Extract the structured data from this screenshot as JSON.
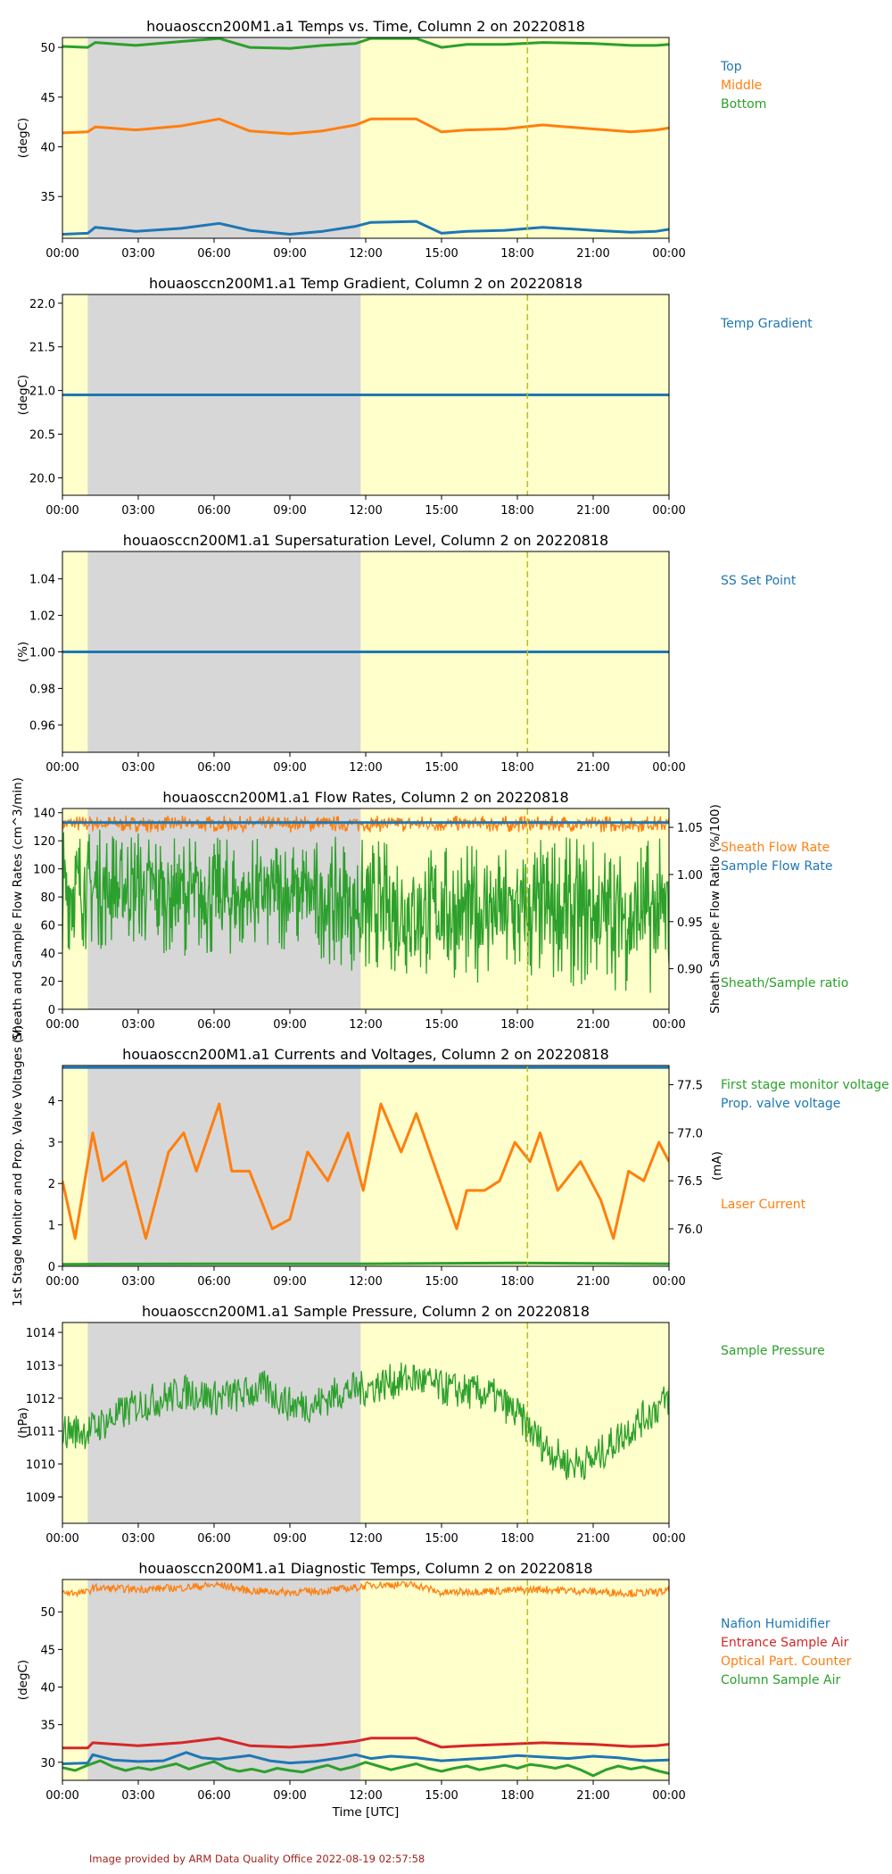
{
  "colors": {
    "blue": "#1f77b4",
    "orange": "#ff7f0e",
    "green": "#2ca02c",
    "red": "#d62728",
    "day_shade": "#ffffcc",
    "night_shade": "#d7d7d7",
    "marker_line": "#bcbd22",
    "credit": "#a0241c"
  },
  "credit": "Image provided by ARM Data Quality Office 2022-08-19 02:57:58",
  "chart_data": [
    {
      "type": "line",
      "title": "houaosccn200M1.a1 Temps vs. Time, Column 2 on 20220818",
      "xlabel": "",
      "ylabel": "(degC)",
      "x_ticks": [
        "00:00",
        "03:00",
        "06:00",
        "09:00",
        "12:00",
        "15:00",
        "18:00",
        "21:00",
        "00:00"
      ],
      "y_ticks": [
        "35",
        "40",
        "45",
        "50"
      ],
      "ylim": [
        30.8,
        51.0
      ],
      "night_shading_hours": [
        1.0,
        11.8
      ],
      "marker_hour": 18.4,
      "legend_entries": [
        {
          "label": "Top",
          "color": "#1f77b4"
        },
        {
          "label": "Middle",
          "color": "#ff7f0e"
        },
        {
          "label": "Bottom",
          "color": "#2ca02c"
        }
      ],
      "series": [
        {
          "name": "Top",
          "color": "#1f77b4",
          "x": [
            0,
            1,
            1.3,
            2.9,
            4.7,
            6.2,
            7.4,
            9.0,
            10.3,
            11.6,
            12.2,
            14.0,
            15.0,
            16.0,
            17.5,
            19.0,
            21.0,
            22.5,
            23.5,
            24
          ],
          "y": [
            31.2,
            31.3,
            31.9,
            31.5,
            31.8,
            32.3,
            31.6,
            31.2,
            31.5,
            32.0,
            32.4,
            32.5,
            31.3,
            31.5,
            31.6,
            31.9,
            31.6,
            31.4,
            31.5,
            31.7
          ]
        },
        {
          "name": "Middle",
          "color": "#ff7f0e",
          "x": [
            0,
            1,
            1.3,
            2.9,
            4.7,
            6.2,
            7.4,
            9.0,
            10.3,
            11.6,
            12.2,
            14.0,
            15.0,
            16.0,
            17.5,
            19.0,
            21.0,
            22.5,
            23.5,
            24
          ],
          "y": [
            41.4,
            41.5,
            42.0,
            41.7,
            42.1,
            42.8,
            41.6,
            41.3,
            41.6,
            42.2,
            42.8,
            42.8,
            41.5,
            41.7,
            41.8,
            42.2,
            41.8,
            41.5,
            41.7,
            41.9
          ]
        },
        {
          "name": "Bottom",
          "color": "#2ca02c",
          "x": [
            0,
            1,
            1.3,
            2.9,
            4.7,
            6.2,
            7.4,
            9.0,
            10.3,
            11.6,
            12.2,
            14.0,
            15.0,
            16.0,
            17.5,
            19.0,
            21.0,
            22.5,
            23.5,
            24
          ],
          "y": [
            50.1,
            50.0,
            50.5,
            50.2,
            50.6,
            50.9,
            50.0,
            49.9,
            50.2,
            50.4,
            50.9,
            50.9,
            50.0,
            50.3,
            50.3,
            50.5,
            50.4,
            50.2,
            50.2,
            50.3
          ]
        }
      ]
    },
    {
      "type": "line",
      "title": "houaosccn200M1.a1 Temp Gradient, Column 2 on 20220818",
      "xlabel": "",
      "ylabel": "(degC)",
      "x_ticks": [
        "00:00",
        "03:00",
        "06:00",
        "09:00",
        "12:00",
        "15:00",
        "18:00",
        "21:00",
        "00:00"
      ],
      "y_ticks": [
        "20.0",
        "20.5",
        "21.0",
        "21.5",
        "22.0"
      ],
      "ylim": [
        19.8,
        22.1
      ],
      "night_shading_hours": [
        1.0,
        11.8
      ],
      "marker_hour": 18.4,
      "legend_entries": [
        {
          "label": "Temp Gradient",
          "color": "#1f77b4"
        }
      ],
      "series": [
        {
          "name": "Temp Gradient",
          "color": "#1f77b4",
          "x": [
            0,
            24
          ],
          "y": [
            20.95,
            20.95
          ]
        }
      ]
    },
    {
      "type": "line",
      "title": "houaosccn200M1.a1 Supersaturation Level, Column 2 on 20220818",
      "xlabel": "",
      "ylabel": "(%)",
      "x_ticks": [
        "00:00",
        "03:00",
        "06:00",
        "09:00",
        "12:00",
        "15:00",
        "18:00",
        "21:00",
        "00:00"
      ],
      "y_ticks": [
        "0.96",
        "0.98",
        "1.00",
        "1.02",
        "1.04"
      ],
      "ylim": [
        0.945,
        1.055
      ],
      "night_shading_hours": [
        1.0,
        11.8
      ],
      "marker_hour": 18.4,
      "legend_entries": [
        {
          "label": "SS Set Point",
          "color": "#1f77b4"
        }
      ],
      "series": [
        {
          "name": "SS Set Point",
          "color": "#1f77b4",
          "x": [
            0,
            24
          ],
          "y": [
            1.0,
            1.0
          ]
        }
      ]
    },
    {
      "type": "line",
      "title": "houaosccn200M1.a1 Flow Rates, Column 2 on 20220818",
      "xlabel": "",
      "ylabel": "Sheath and Sample Flow Rates (cm^3/min)",
      "ylabel_right": "Sheath Sample Flow Ratio (%/100)",
      "x_ticks": [
        "00:00",
        "03:00",
        "06:00",
        "09:00",
        "12:00",
        "15:00",
        "18:00",
        "21:00",
        "00:00"
      ],
      "y_ticks": [
        "0",
        "20",
        "40",
        "60",
        "80",
        "100",
        "120",
        "140"
      ],
      "y_ticks_right": [
        "0.90",
        "0.95",
        "1.00",
        "1.05"
      ],
      "ylim": [
        0,
        143
      ],
      "ylim_right": [
        0.857,
        1.07
      ],
      "night_shading_hours": [
        1.0,
        11.8
      ],
      "marker_hour": 18.4,
      "legend_entries": [
        {
          "label": "Sheath Flow Rate",
          "color": "#ff7f0e"
        },
        {
          "label": "Sample Flow Rate",
          "color": "#1f77b4"
        },
        {
          "label": "Sheath/Sample ratio",
          "color": "#2ca02c"
        }
      ],
      "series": [
        {
          "name": "Sheath Flow Rate",
          "color": "#ff7f0e",
          "axis": "left",
          "x": [
            0,
            24
          ],
          "y_low": [
            126,
            126
          ],
          "y_high": [
            138,
            138
          ]
        },
        {
          "name": "Sample Flow Rate",
          "color": "#1f77b4",
          "axis": "left",
          "x": [
            0,
            24
          ],
          "y": [
            133,
            133
          ]
        },
        {
          "name": "Sheath/Sample ratio",
          "color": "#2ca02c",
          "axis": "right",
          "x": [
            0,
            3,
            6,
            9,
            12,
            15,
            18,
            21,
            24
          ],
          "y_low": [
            0.92,
            0.92,
            0.91,
            0.92,
            0.89,
            0.89,
            0.88,
            0.88,
            0.87
          ],
          "y_high": [
            1.05,
            1.05,
            1.04,
            1.04,
            1.04,
            1.03,
            1.04,
            1.04,
            1.04
          ]
        }
      ]
    },
    {
      "type": "line",
      "title": "houaosccn200M1.a1 Currents and Voltages, Column 2 on 20220818",
      "xlabel": "",
      "ylabel": "1st Stage Monitor and Prop. Valve Voltages (V)",
      "ylabel_right": "(mA)",
      "x_ticks": [
        "00:00",
        "03:00",
        "06:00",
        "09:00",
        "12:00",
        "15:00",
        "18:00",
        "21:00",
        "00:00"
      ],
      "y_ticks": [
        "0",
        "1",
        "2",
        "3",
        "4"
      ],
      "y_ticks_right": [
        "76.0",
        "76.5",
        "77.0",
        "77.5"
      ],
      "ylim": [
        0,
        4.85
      ],
      "ylim_right": [
        75.61,
        77.7
      ],
      "night_shading_hours": [
        1.0,
        11.8
      ],
      "marker_hour": 18.4,
      "legend_entries": [
        {
          "label": "First stage monitor voltage",
          "color": "#2ca02c"
        },
        {
          "label": "Prop. valve voltage",
          "color": "#1f77b4"
        },
        {
          "label": "Laser Current",
          "color": "#ff7f0e"
        }
      ],
      "series": [
        {
          "name": "First stage monitor voltage",
          "color": "#2ca02c",
          "axis": "left",
          "x": [
            0,
            6,
            12,
            18,
            24
          ],
          "y": [
            0.05,
            0.06,
            0.06,
            0.08,
            0.06
          ]
        },
        {
          "name": "Prop. valve voltage",
          "color": "#1f77b4",
          "axis": "left",
          "x": [
            0,
            24
          ],
          "y": [
            4.8,
            4.8
          ]
        },
        {
          "name": "Laser Current",
          "color": "#ff7f0e",
          "axis": "right",
          "x": [
            0,
            0.5,
            1.2,
            1.6,
            2.5,
            3.0,
            3.3,
            4.2,
            4.8,
            5.3,
            6.2,
            6.7,
            7.4,
            8.3,
            9.0,
            9.7,
            10.5,
            11.3,
            11.9,
            12.6,
            13.4,
            14.0,
            14.8,
            15.6,
            16.0,
            16.7,
            17.3,
            17.9,
            18.5,
            18.9,
            19.6,
            20.5,
            21.3,
            21.8,
            22.4,
            23.0,
            23.6,
            24
          ],
          "y": [
            76.5,
            75.9,
            77.0,
            76.5,
            76.7,
            76.2,
            75.9,
            76.8,
            77.0,
            76.6,
            77.3,
            76.6,
            76.6,
            76.0,
            76.1,
            76.8,
            76.5,
            77.0,
            76.4,
            77.3,
            76.8,
            77.2,
            76.6,
            76.0,
            76.4,
            76.4,
            76.5,
            76.9,
            76.7,
            77.0,
            76.4,
            76.7,
            76.3,
            75.9,
            76.6,
            76.5,
            76.9,
            76.7
          ]
        }
      ]
    },
    {
      "type": "line",
      "title": "houaosccn200M1.a1 Sample Pressure, Column 2 on 20220818",
      "xlabel": "",
      "ylabel": "(hPa)",
      "x_ticks": [
        "00:00",
        "03:00",
        "06:00",
        "09:00",
        "12:00",
        "15:00",
        "18:00",
        "21:00",
        "00:00"
      ],
      "y_ticks": [
        "1009",
        "1010",
        "1011",
        "1012",
        "1013",
        "1014"
      ],
      "ylim": [
        1008.2,
        1014.3
      ],
      "night_shading_hours": [
        1.0,
        11.8
      ],
      "marker_hour": 18.4,
      "legend_entries": [
        {
          "label": "Sample Pressure",
          "color": "#2ca02c"
        }
      ],
      "series": [
        {
          "name": "Sample Pressure",
          "color": "#2ca02c",
          "x": [
            0,
            1,
            2,
            3,
            4,
            5,
            6,
            7,
            8,
            9,
            10,
            11,
            12,
            13,
            14,
            15,
            16,
            17,
            18,
            19,
            20,
            21,
            22,
            23,
            24
          ],
          "y": [
            1011.0,
            1011.0,
            1011.4,
            1011.8,
            1012.0,
            1012.2,
            1012.0,
            1012.1,
            1012.3,
            1011.8,
            1011.8,
            1012.2,
            1012.3,
            1012.5,
            1012.6,
            1012.3,
            1012.2,
            1012.1,
            1011.5,
            1010.6,
            1010.0,
            1010.1,
            1010.8,
            1011.4,
            1012.0
          ],
          "band": 0.55
        }
      ]
    },
    {
      "type": "line",
      "title": "houaosccn200M1.a1 Diagnostic Temps, Column 2 on 20220818",
      "xlabel": "Time [UTC]",
      "ylabel": "(degC)",
      "x_ticks": [
        "00:00",
        "03:00",
        "06:00",
        "09:00",
        "12:00",
        "15:00",
        "18:00",
        "21:00",
        "00:00"
      ],
      "y_ticks": [
        "30",
        "35",
        "40",
        "45",
        "50"
      ],
      "ylim": [
        27.6,
        54.3
      ],
      "night_shading_hours": [
        1.0,
        11.8
      ],
      "marker_hour": 18.4,
      "legend_entries": [
        {
          "label": "Nafion Humidifier",
          "color": "#1f77b4"
        },
        {
          "label": "Entrance Sample Air",
          "color": "#d62728"
        },
        {
          "label": "Optical Part. Counter",
          "color": "#ff7f0e"
        },
        {
          "label": "Column Sample Air",
          "color": "#2ca02c"
        }
      ],
      "series": [
        {
          "name": "Optical Part. Counter",
          "color": "#ff7f0e",
          "x": [
            0,
            1,
            1.2,
            3,
            4.7,
            6.2,
            7.4,
            9.0,
            10.3,
            11.6,
            12.2,
            14.0,
            15.0,
            16.0,
            17.5,
            19.0,
            21.0,
            22.5,
            23.5,
            24
          ],
          "y": [
            52.5,
            52.6,
            53.2,
            53.0,
            53.2,
            53.6,
            52.8,
            52.6,
            52.8,
            53.2,
            53.6,
            53.6,
            52.5,
            52.7,
            52.8,
            53.0,
            52.7,
            52.5,
            52.6,
            52.8
          ],
          "band": 0.5
        },
        {
          "name": "Entrance Sample Air",
          "color": "#d62728",
          "x": [
            0,
            1,
            1.2,
            3,
            4.7,
            6.2,
            7.4,
            9.0,
            10.3,
            11.6,
            12.2,
            14.0,
            15.0,
            16.0,
            17.5,
            19.0,
            21.0,
            22.5,
            23.5,
            24
          ],
          "y": [
            31.9,
            31.9,
            32.6,
            32.2,
            32.6,
            33.2,
            32.2,
            32.0,
            32.3,
            32.8,
            33.2,
            33.2,
            32.0,
            32.2,
            32.4,
            32.6,
            32.4,
            32.1,
            32.2,
            32.4
          ]
        },
        {
          "name": "Nafion Humidifier",
          "color": "#1f77b4",
          "x": [
            0,
            1,
            1.2,
            2.0,
            3.0,
            4.0,
            4.9,
            5.5,
            6.2,
            7.4,
            8.2,
            9.0,
            10.0,
            11.0,
            11.6,
            12.2,
            13.0,
            14.0,
            15.0,
            16.0,
            17.0,
            18.0,
            19.0,
            20.0,
            21.0,
            22.0,
            23.0,
            24
          ],
          "y": [
            29.8,
            29.9,
            31.0,
            30.3,
            30.1,
            30.2,
            31.3,
            30.6,
            30.4,
            30.9,
            30.2,
            29.9,
            30.1,
            30.6,
            31.0,
            30.5,
            30.8,
            30.6,
            30.2,
            30.4,
            30.6,
            30.9,
            30.7,
            30.5,
            30.8,
            30.6,
            30.2,
            30.3
          ]
        },
        {
          "name": "Column Sample Air",
          "color": "#2ca02c",
          "x": [
            0,
            0.5,
            1.0,
            1.5,
            2.0,
            2.5,
            3.0,
            3.5,
            4.0,
            4.5,
            5.0,
            5.5,
            6.0,
            6.5,
            7.0,
            7.5,
            8.0,
            8.5,
            9.0,
            9.5,
            10.0,
            10.5,
            11.0,
            11.5,
            12.0,
            12.5,
            13.0,
            13.5,
            14.0,
            14.5,
            15.0,
            15.5,
            16.0,
            16.5,
            17.0,
            17.5,
            18.0,
            18.5,
            19.0,
            19.5,
            20.0,
            20.5,
            21.0,
            21.5,
            22.0,
            22.5,
            23.0,
            23.5,
            24.0
          ],
          "y": [
            29.3,
            28.9,
            29.6,
            30.2,
            29.4,
            28.9,
            29.3,
            29.0,
            29.4,
            29.8,
            29.1,
            29.6,
            30.1,
            29.2,
            28.8,
            29.1,
            28.7,
            29.2,
            28.9,
            28.7,
            29.2,
            29.6,
            29.0,
            29.4,
            30.0,
            29.5,
            29.0,
            29.4,
            29.8,
            29.2,
            28.8,
            29.2,
            29.5,
            29.0,
            29.3,
            29.6,
            29.2,
            29.7,
            29.5,
            29.2,
            29.6,
            29.0,
            28.2,
            29.0,
            29.5,
            29.1,
            29.4,
            28.9,
            28.5
          ]
        }
      ]
    }
  ]
}
